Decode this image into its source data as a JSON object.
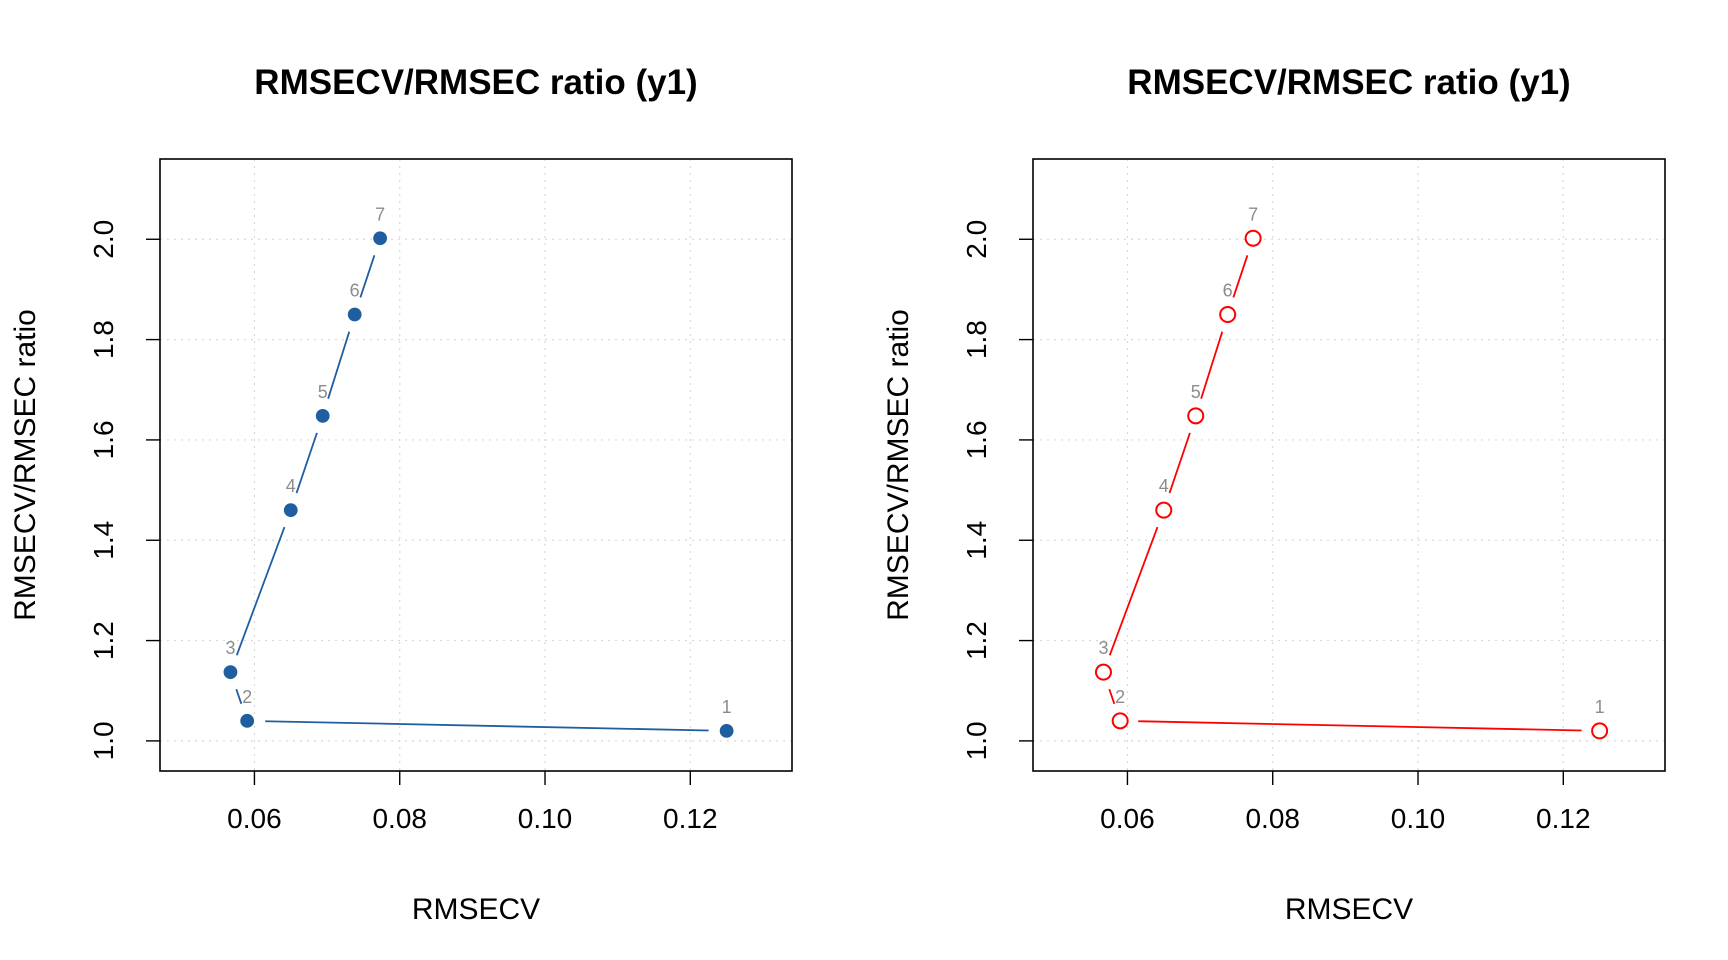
{
  "chart_data": [
    {
      "type": "line",
      "title": "RMSECV/RMSEC ratio (y1)",
      "xlabel": "RMSECV",
      "ylabel": "RMSECV/RMSEC ratio",
      "xlim": [
        0.047,
        0.134
      ],
      "ylim": [
        0.94,
        2.16
      ],
      "xticks": [
        0.06,
        0.08,
        0.1,
        0.12
      ],
      "xtick_labels": [
        "0.06",
        "0.08",
        "0.10",
        "0.12"
      ],
      "yticks": [
        1.0,
        1.2,
        1.4,
        1.6,
        1.8,
        2.0
      ],
      "ytick_labels": [
        "1.0",
        "1.2",
        "1.4",
        "1.6",
        "1.8",
        "2.0"
      ],
      "grid": true,
      "marker": "filled-circle",
      "color": "#1f5fa0",
      "points": [
        {
          "label": "1",
          "x": 0.125,
          "y": 1.02
        },
        {
          "label": "2",
          "x": 0.059,
          "y": 1.04
        },
        {
          "label": "3",
          "x": 0.0567,
          "y": 1.137
        },
        {
          "label": "4",
          "x": 0.065,
          "y": 1.46
        },
        {
          "label": "5",
          "x": 0.0694,
          "y": 1.648
        },
        {
          "label": "6",
          "x": 0.0738,
          "y": 1.85
        },
        {
          "label": "7",
          "x": 0.0773,
          "y": 2.002
        }
      ]
    },
    {
      "type": "line",
      "title": "RMSECV/RMSEC ratio (y1)",
      "xlabel": "RMSECV",
      "ylabel": "RMSECV/RMSEC ratio",
      "xlim": [
        0.047,
        0.134
      ],
      "ylim": [
        0.94,
        2.16
      ],
      "xticks": [
        0.06,
        0.08,
        0.1,
        0.12
      ],
      "xtick_labels": [
        "0.06",
        "0.08",
        "0.10",
        "0.12"
      ],
      "yticks": [
        1.0,
        1.2,
        1.4,
        1.6,
        1.8,
        2.0
      ],
      "ytick_labels": [
        "1.0",
        "1.2",
        "1.4",
        "1.6",
        "1.8",
        "2.0"
      ],
      "grid": true,
      "marker": "open-circle",
      "color": "#ff0000",
      "points": [
        {
          "label": "1",
          "x": 0.125,
          "y": 1.02
        },
        {
          "label": "2",
          "x": 0.059,
          "y": 1.04
        },
        {
          "label": "3",
          "x": 0.0567,
          "y": 1.137
        },
        {
          "label": "4",
          "x": 0.065,
          "y": 1.46
        },
        {
          "label": "5",
          "x": 0.0694,
          "y": 1.648
        },
        {
          "label": "6",
          "x": 0.0738,
          "y": 1.85
        },
        {
          "label": "7",
          "x": 0.0773,
          "y": 2.002
        }
      ]
    }
  ]
}
